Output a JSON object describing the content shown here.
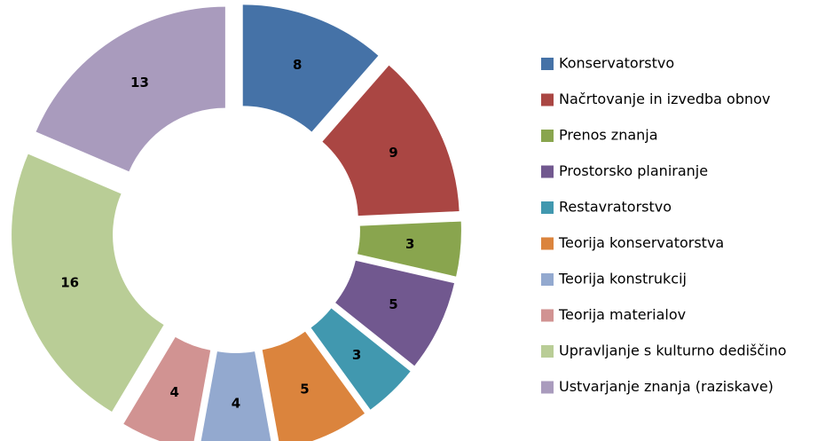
{
  "chart_data": {
    "type": "donut",
    "categories": [
      "Konservatorstvo",
      "Načrtovanje in izvedba obnov",
      "Prenos znanja",
      "Prostorsko planiranje",
      "Restavratorstvo",
      "Teorija konservatorstva",
      "Teorija konstrukcij",
      "Teorija materialov",
      "Upravljanje s kulturno dediščino",
      "Ustvarjanje znanja (raziskave)"
    ],
    "values": [
      8,
      9,
      3,
      5,
      3,
      5,
      4,
      4,
      16,
      13
    ],
    "colors": [
      "#4572a7",
      "#aa4643",
      "#89a54e",
      "#71588f",
      "#4198af",
      "#db843d",
      "#93a9cf",
      "#d19392",
      "#b9cd96",
      "#a99bbd"
    ],
    "legend": "right"
  }
}
